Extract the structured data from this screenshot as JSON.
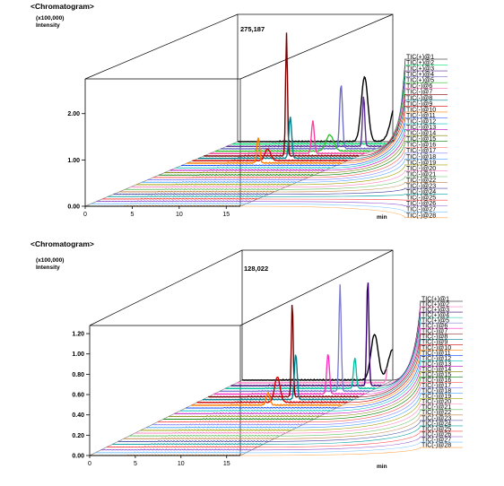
{
  "chart_data": [
    {
      "type": "line",
      "chart_label": "<Chromatogram>",
      "y_scale_note": "(x100,000)",
      "ylabel": "Intensity",
      "xlabel": "min",
      "max_intensity_readout": "275,187",
      "x_ticks": [
        "0",
        "5",
        "10",
        "15"
      ],
      "y_ticks": [
        "0.00",
        "1.00",
        "2.00"
      ],
      "xlim": [
        0,
        16.5
      ],
      "ylim": [
        0,
        2.75
      ],
      "legend_placement": "right",
      "grid": false,
      "background_color": "#ffffff",
      "series": [
        {
          "name": "TIC(+)@1",
          "color": "#000000",
          "peaks": [
            [
              13.5,
              1.4,
              0.35
            ],
            [
              17.0,
              0.95,
              0.6
            ],
            [
              20.5,
              1.25,
              0.4
            ]
          ]
        },
        {
          "name": "TIC(+)@2",
          "color": "#00e070",
          "peaks": [
            [
              20.2,
              2.0,
              0.25
            ],
            [
              21.0,
              2.0,
              0.25
            ],
            [
              22.5,
              0.75,
              0.4
            ]
          ]
        },
        {
          "name": "TIC(+)@3",
          "color": "#5a3090",
          "peaks": [
            [
              14.6,
              1.1,
              0.12
            ]
          ]
        },
        {
          "name": "TIC(+)@4",
          "color": "#7070c8",
          "peaks": [
            [
              12.8,
              1.4,
              0.15
            ]
          ]
        },
        {
          "name": "TIC(+)@5",
          "color": "#30c030",
          "peaks": [
            [
              12.2,
              0.35,
              0.4
            ]
          ]
        },
        {
          "name": "TIC(-)@6",
          "color": "#ff3fa0",
          "peaks": [
            [
              11.0,
              0.7,
              0.15
            ]
          ]
        },
        {
          "name": "TIC(-)@7",
          "color": "#7a0000",
          "peaks": [
            [
              8.8,
              2.65,
              0.1
            ]
          ]
        },
        {
          "name": "TIC(-)@8",
          "color": "#00808a",
          "peaks": [
            [
              9.8,
              0.9,
              0.15
            ]
          ]
        },
        {
          "name": "TIC(-)@9",
          "color": "#d00000",
          "peaks": [
            [
              8.0,
              0.25,
              0.3
            ]
          ]
        },
        {
          "name": "TIC(-)@10",
          "color": "#ff7f00",
          "peaks": [
            [
              7.6,
              0.55,
              0.15
            ]
          ]
        },
        {
          "name": "TIC(-)@11",
          "color": "#0040ff",
          "peaks": []
        },
        {
          "name": "TIC(-)@12",
          "color": "#00c0c0",
          "peaks": []
        },
        {
          "name": "TIC(-)@13",
          "color": "#c000c0",
          "peaks": []
        },
        {
          "name": "TIC(-)@14",
          "color": "#808000",
          "peaks": []
        },
        {
          "name": "TIC(-)@15",
          "color": "#008000",
          "peaks": []
        },
        {
          "name": "TIC(-)@16",
          "color": "#ff5050",
          "peaks": []
        },
        {
          "name": "TIC(-)@17",
          "color": "#8080ff",
          "peaks": []
        },
        {
          "name": "TIC(-)@18",
          "color": "#40a0ff",
          "peaks": []
        },
        {
          "name": "TIC(-)@19",
          "color": "#a0a000",
          "peaks": []
        },
        {
          "name": "TIC(-)@20",
          "color": "#ff80c0",
          "peaks": []
        },
        {
          "name": "TIC(-)@21",
          "color": "#60c060",
          "peaks": []
        },
        {
          "name": "TIC(-)@22",
          "color": "#c08040",
          "peaks": []
        },
        {
          "name": "TIC(-)@23",
          "color": "#4040a0",
          "peaks": []
        },
        {
          "name": "TIC(-)@24",
          "color": "#00a0a0",
          "peaks": []
        },
        {
          "name": "TIC(-)@25",
          "color": "#ff4040",
          "peaks": []
        },
        {
          "name": "TIC(-)@26",
          "color": "#9050d0",
          "peaks": []
        },
        {
          "name": "TIC(-)@27",
          "color": "#70c0ff",
          "peaks": []
        },
        {
          "name": "TIC(-)@28",
          "color": "#ffa040",
          "peaks": []
        }
      ]
    },
    {
      "type": "line",
      "chart_label": "<Chromatogram>",
      "y_scale_note": "(x100,000)",
      "ylabel": "Intensity",
      "xlabel": "min",
      "max_intensity_readout": "128,022",
      "x_ticks": [
        "0",
        "5",
        "10",
        "15"
      ],
      "y_ticks": [
        "0.00",
        "0.20",
        "0.40",
        "0.60",
        "0.80",
        "1.00",
        "1.20"
      ],
      "xlim": [
        0,
        16.5
      ],
      "ylim": [
        0,
        1.28
      ],
      "legend_placement": "right",
      "grid": false,
      "background_color": "#ffffff",
      "series": [
        {
          "name": "TIC(+)@1",
          "color": "#000000",
          "peaks": [
            [
              14.5,
              0.45,
              0.4
            ],
            [
              16.5,
              0.3,
              0.5
            ],
            [
              19.5,
              0.6,
              0.25
            ]
          ]
        },
        {
          "name": "TIC(+)@2",
          "color": "#ff7fc8",
          "peaks": [
            [
              16.8,
              0.45,
              0.2
            ]
          ]
        },
        {
          "name": "TIC(+)@3",
          "color": "#3a0070",
          "peaks": [
            [
              15.0,
              1.05,
              0.12
            ]
          ]
        },
        {
          "name": "TIC(+)@4",
          "color": "#00c0a0",
          "peaks": [
            [
              14.2,
              0.3,
              0.15
            ]
          ]
        },
        {
          "name": "TIC(+)@5",
          "color": "#8080d0",
          "peaks": [
            [
              13.2,
              1.05,
              0.12
            ]
          ]
        },
        {
          "name": "TIC(-)@6",
          "color": "#ff30c0",
          "peaks": [
            [
              12.5,
              0.4,
              0.15
            ]
          ]
        },
        {
          "name": "TIC(-)@7",
          "color": "#7a0000",
          "peaks": [
            [
              9.2,
              0.95,
              0.1
            ]
          ]
        },
        {
          "name": "TIC(-)@8",
          "color": "#00808a",
          "peaks": [
            [
              10.2,
              0.45,
              0.15
            ]
          ]
        },
        {
          "name": "TIC(-)@9",
          "color": "#d00000",
          "peaks": [
            [
              8.8,
              0.25,
              0.3
            ]
          ]
        },
        {
          "name": "TIC(-)@10",
          "color": "#ff7f00",
          "peaks": [
            [
              8.4,
              0.12,
              0.2
            ]
          ]
        },
        {
          "name": "TIC(-)@11",
          "color": "#0040ff",
          "peaks": []
        },
        {
          "name": "TIC(-)@12",
          "color": "#00c0c0",
          "peaks": []
        },
        {
          "name": "TIC(-)@13",
          "color": "#c000c0",
          "peaks": []
        },
        {
          "name": "TIC(-)@14",
          "color": "#808000",
          "peaks": []
        },
        {
          "name": "TIC(-)@15",
          "color": "#008000",
          "peaks": []
        },
        {
          "name": "TIC(-)@16",
          "color": "#ff5050",
          "peaks": []
        },
        {
          "name": "TIC(-)@17",
          "color": "#8080ff",
          "peaks": []
        },
        {
          "name": "TIC(-)@18",
          "color": "#40a0ff",
          "peaks": []
        },
        {
          "name": "TIC(-)@19",
          "color": "#a0a000",
          "peaks": []
        },
        {
          "name": "TIC(-)@20",
          "color": "#ff80c0",
          "peaks": []
        },
        {
          "name": "TIC(-)@21",
          "color": "#60c060",
          "peaks": []
        },
        {
          "name": "TIC(-)@22",
          "color": "#c08040",
          "peaks": []
        },
        {
          "name": "TIC(-)@23",
          "color": "#4040a0",
          "peaks": []
        },
        {
          "name": "TIC(-)@24",
          "color": "#00a0a0",
          "peaks": []
        },
        {
          "name": "TIC(-)@25",
          "color": "#ff4040",
          "peaks": []
        },
        {
          "name": "TIC(-)@26",
          "color": "#9050d0",
          "peaks": []
        },
        {
          "name": "TIC(-)@27",
          "color": "#70c0ff",
          "peaks": []
        },
        {
          "name": "TIC(-)@28",
          "color": "#ffa040",
          "peaks": []
        }
      ]
    }
  ]
}
